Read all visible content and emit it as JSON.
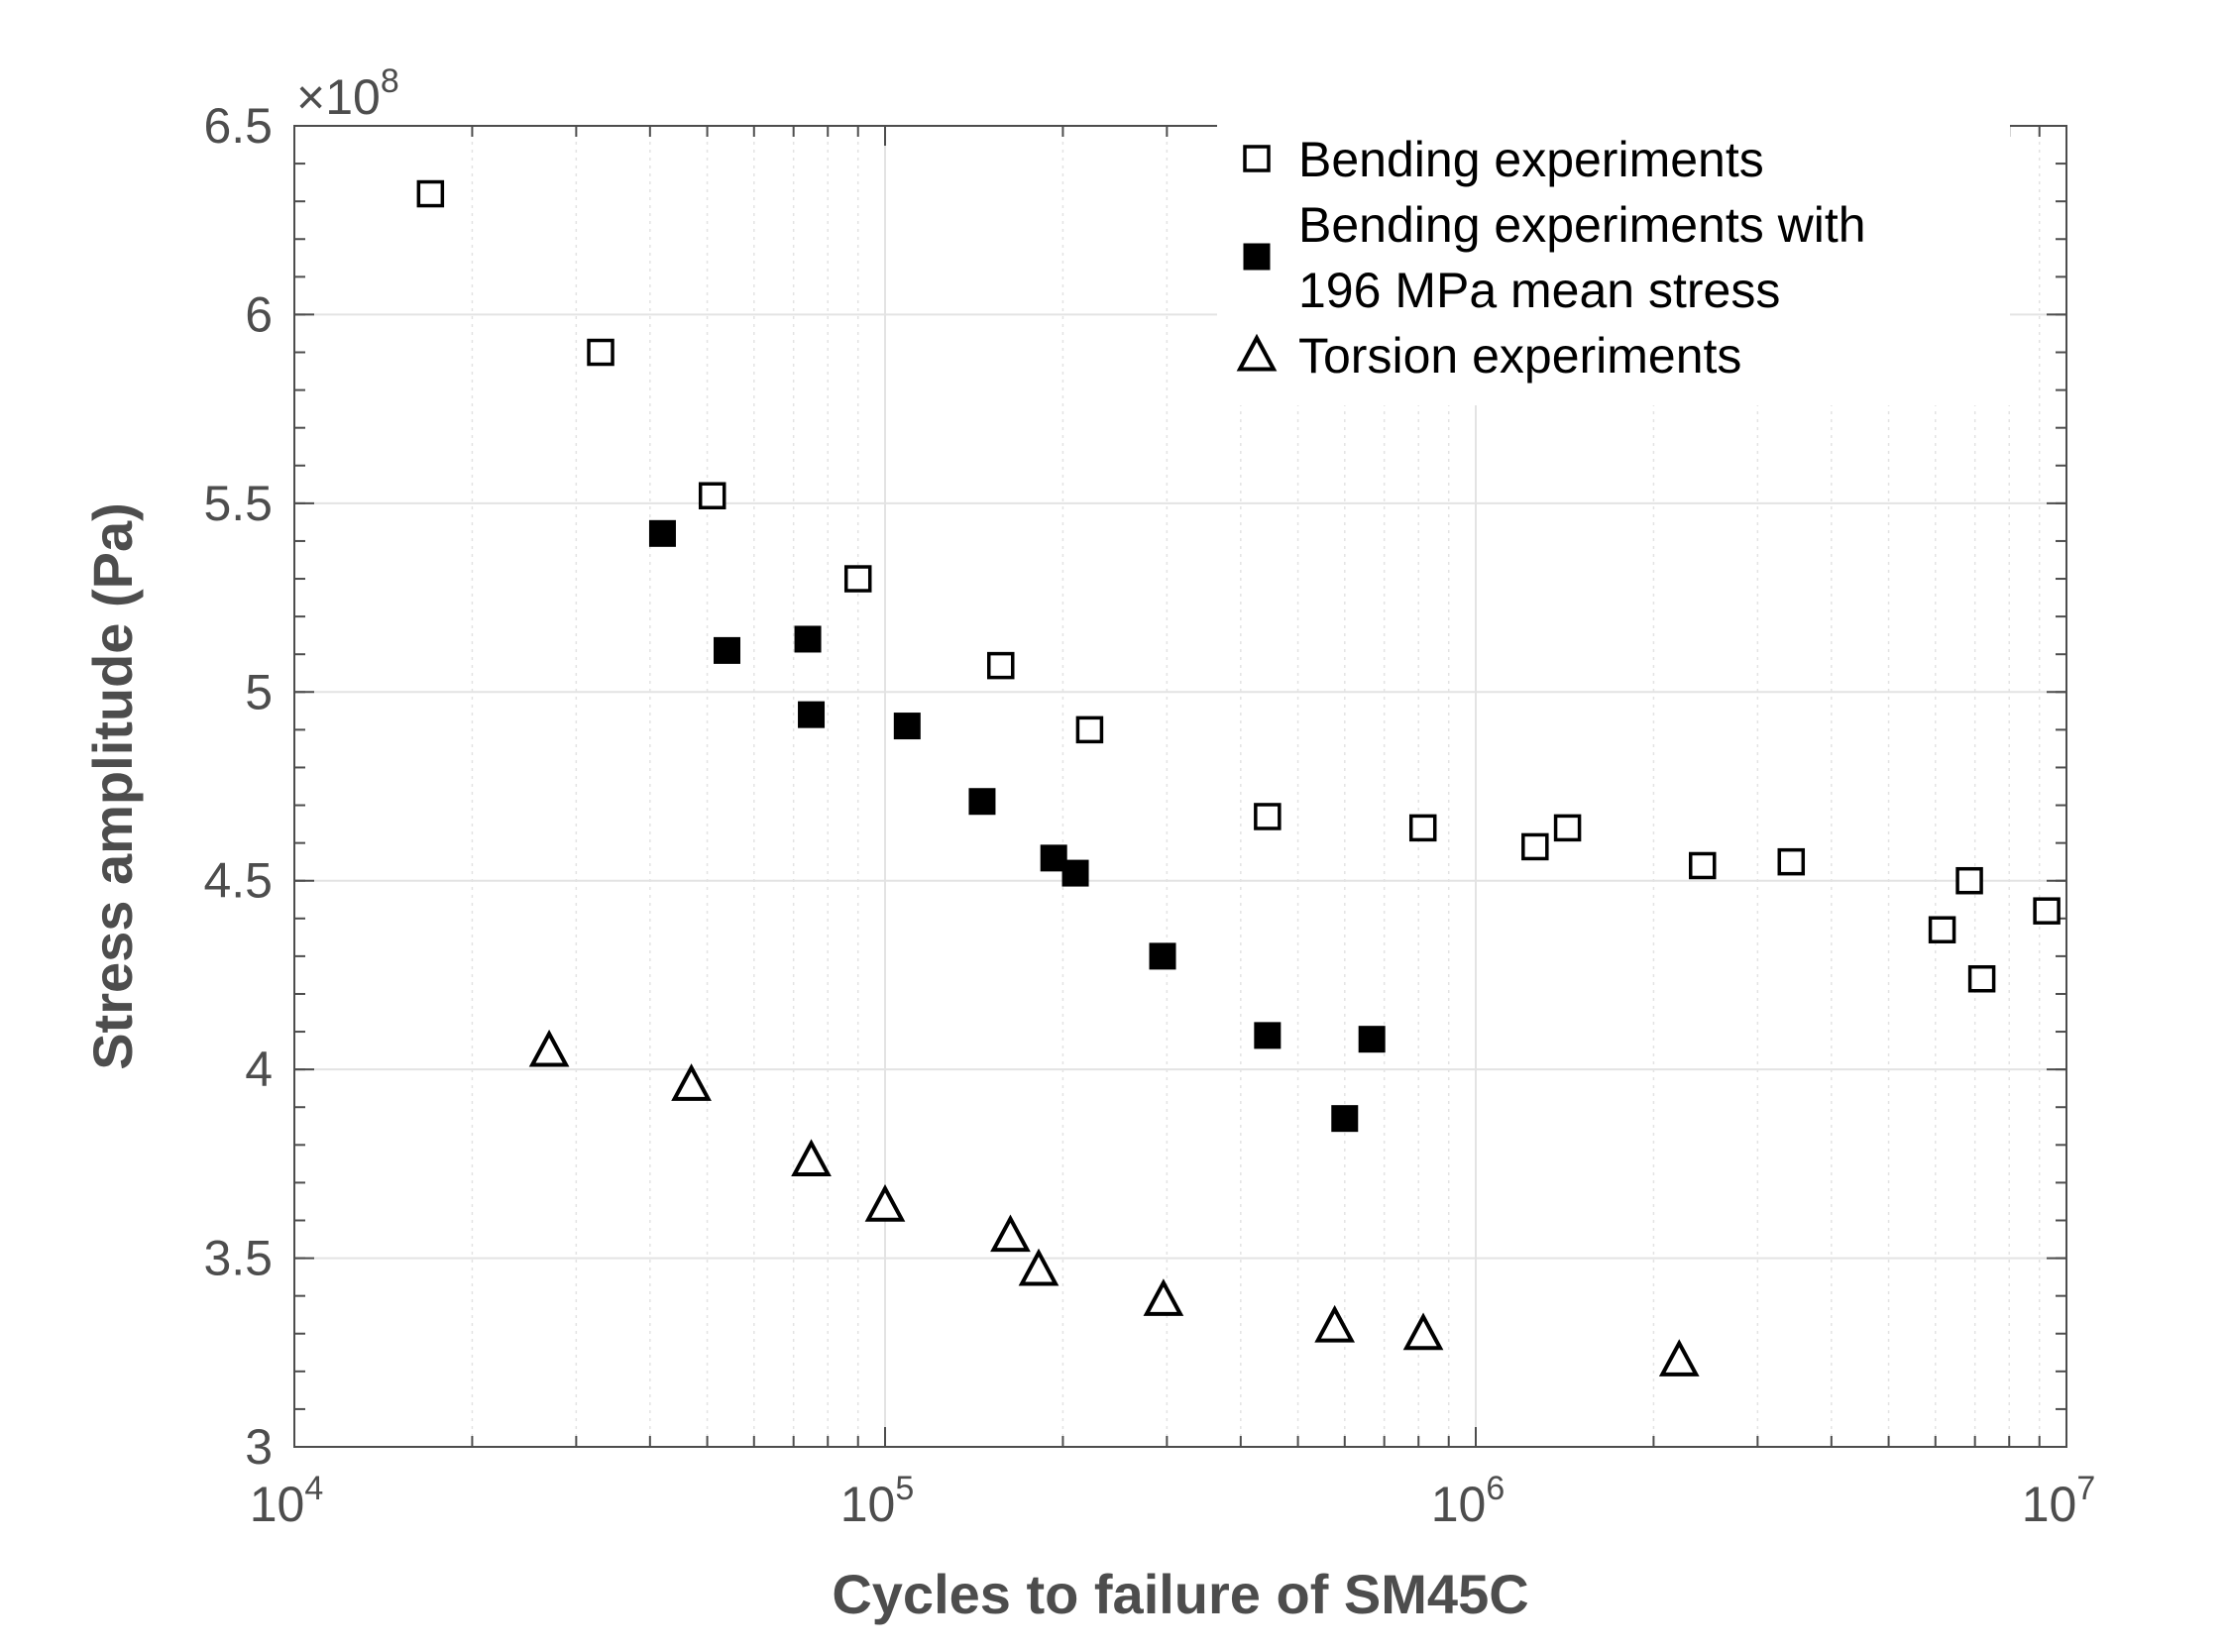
{
  "chart_data": {
    "type": "scatter",
    "xlabel": "Cycles to failure of SM45C",
    "ylabel": "Stress amplitude (Pa)",
    "xscale": "log",
    "xlim": [
      10000,
      10000000
    ],
    "ylim": [
      300000000,
      650000000
    ],
    "y_multiplier_label": "×10",
    "y_multiplier_exponent": "8",
    "x_tick_base": "10",
    "x_ticks": [
      {
        "value": 10000,
        "exponent": "4"
      },
      {
        "value": 100000,
        "exponent": "5"
      },
      {
        "value": 1000000,
        "exponent": "6"
      },
      {
        "value": 10000000,
        "exponent": "7"
      }
    ],
    "y_ticks": [
      {
        "value": 300000000,
        "label": "3"
      },
      {
        "value": 350000000,
        "label": "3.5"
      },
      {
        "value": 400000000,
        "label": "4"
      },
      {
        "value": 450000000,
        "label": "4.5"
      },
      {
        "value": 500000000,
        "label": "5"
      },
      {
        "value": 550000000,
        "label": "5.5"
      },
      {
        "value": 600000000,
        "label": "6"
      },
      {
        "value": 650000000,
        "label": "6.5"
      }
    ],
    "grid": true,
    "legend_position": "top-right",
    "colors": {
      "marker": "#000000",
      "axis": "#4d4d4d",
      "grid": "#e3e3e3",
      "background": "#ffffff"
    },
    "series": [
      {
        "name": "Bending experiments",
        "legend_lines": [
          "Bending experiments"
        ],
        "marker": "square-open",
        "points": [
          {
            "x": 17000,
            "y": 632000000
          },
          {
            "x": 33000,
            "y": 590000000
          },
          {
            "x": 51000,
            "y": 552000000
          },
          {
            "x": 90000,
            "y": 530000000
          },
          {
            "x": 157000,
            "y": 507000000
          },
          {
            "x": 222000,
            "y": 490000000
          },
          {
            "x": 444000,
            "y": 467000000
          },
          {
            "x": 814000,
            "y": 464000000
          },
          {
            "x": 1260000,
            "y": 459000000
          },
          {
            "x": 1430000,
            "y": 464000000
          },
          {
            "x": 2420000,
            "y": 454000000
          },
          {
            "x": 3420000,
            "y": 455000000
          },
          {
            "x": 6160000,
            "y": 437000000
          },
          {
            "x": 6850000,
            "y": 450000000
          },
          {
            "x": 7190000,
            "y": 424000000
          },
          {
            "x": 9260000,
            "y": 442000000
          }
        ]
      },
      {
        "name": "Bending experiments with 196 MPa mean stress",
        "legend_lines": [
          "Bending experiments with",
          "196 MPa mean stress"
        ],
        "marker": "square-filled",
        "points": [
          {
            "x": 42000,
            "y": 542000000
          },
          {
            "x": 54000,
            "y": 511000000
          },
          {
            "x": 74000,
            "y": 514000000
          },
          {
            "x": 75000,
            "y": 494000000
          },
          {
            "x": 109000,
            "y": 491000000
          },
          {
            "x": 146000,
            "y": 471000000
          },
          {
            "x": 193000,
            "y": 456000000
          },
          {
            "x": 210000,
            "y": 452000000
          },
          {
            "x": 295000,
            "y": 430000000
          },
          {
            "x": 444000,
            "y": 409000000
          },
          {
            "x": 600000,
            "y": 387000000
          },
          {
            "x": 667000,
            "y": 408000000
          }
        ]
      },
      {
        "name": "Torsion experiments",
        "legend_lines": [
          "Torsion experiments"
        ],
        "marker": "triangle-open",
        "points": [
          {
            "x": 27000,
            "y": 405000000
          },
          {
            "x": 47000,
            "y": 396000000
          },
          {
            "x": 75000,
            "y": 376000000
          },
          {
            "x": 100000,
            "y": 364000000
          },
          {
            "x": 163000,
            "y": 356000000
          },
          {
            "x": 182000,
            "y": 347000000
          },
          {
            "x": 296000,
            "y": 339000000
          },
          {
            "x": 577000,
            "y": 332000000
          },
          {
            "x": 815000,
            "y": 330000000
          },
          {
            "x": 2210000,
            "y": 323000000
          }
        ]
      }
    ]
  }
}
